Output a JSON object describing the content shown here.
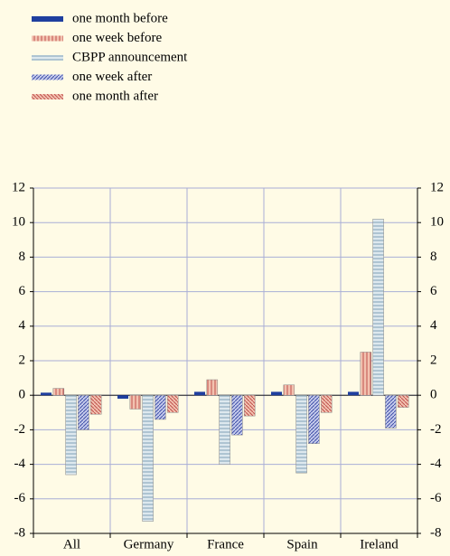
{
  "chart_data": {
    "type": "bar",
    "categories": [
      "All",
      "Germany",
      "France",
      "Spain",
      "Ireland"
    ],
    "series": [
      {
        "name": "one month before",
        "color": "#1f3f9f",
        "hatch": "solid",
        "values": [
          0.15,
          -0.2,
          0.2,
          0.2,
          0.2
        ]
      },
      {
        "name": "one week before",
        "color": "#c0504d",
        "hatch": "vertical",
        "values": [
          0.4,
          -0.8,
          0.9,
          0.6,
          2.5
        ]
      },
      {
        "name": "CBPP announcement",
        "color": "#7f9fb5",
        "hatch": "horizontal",
        "values": [
          -4.6,
          -7.3,
          -4.0,
          -4.5,
          10.2
        ]
      },
      {
        "name": "one week after",
        "color": "#3f4fa8",
        "hatch": "diagonal",
        "values": [
          -2.0,
          -1.4,
          -2.3,
          -2.8,
          -1.9
        ]
      },
      {
        "name": "one month after",
        "color": "#c0504d",
        "hatch": "antidiagonal",
        "values": [
          -1.1,
          -1.0,
          -1.2,
          -1.0,
          -0.7
        ]
      }
    ],
    "ylim": [
      -8,
      12
    ],
    "yticks": [
      -8,
      -6,
      -4,
      -2,
      0,
      2,
      4,
      6,
      8,
      10,
      12
    ],
    "y2lim": [
      -8,
      12
    ],
    "y2ticks": [
      -8,
      -6,
      -4,
      -2,
      0,
      2,
      4,
      6,
      8,
      10,
      12
    ],
    "grid": true,
    "legend": "top-left"
  }
}
